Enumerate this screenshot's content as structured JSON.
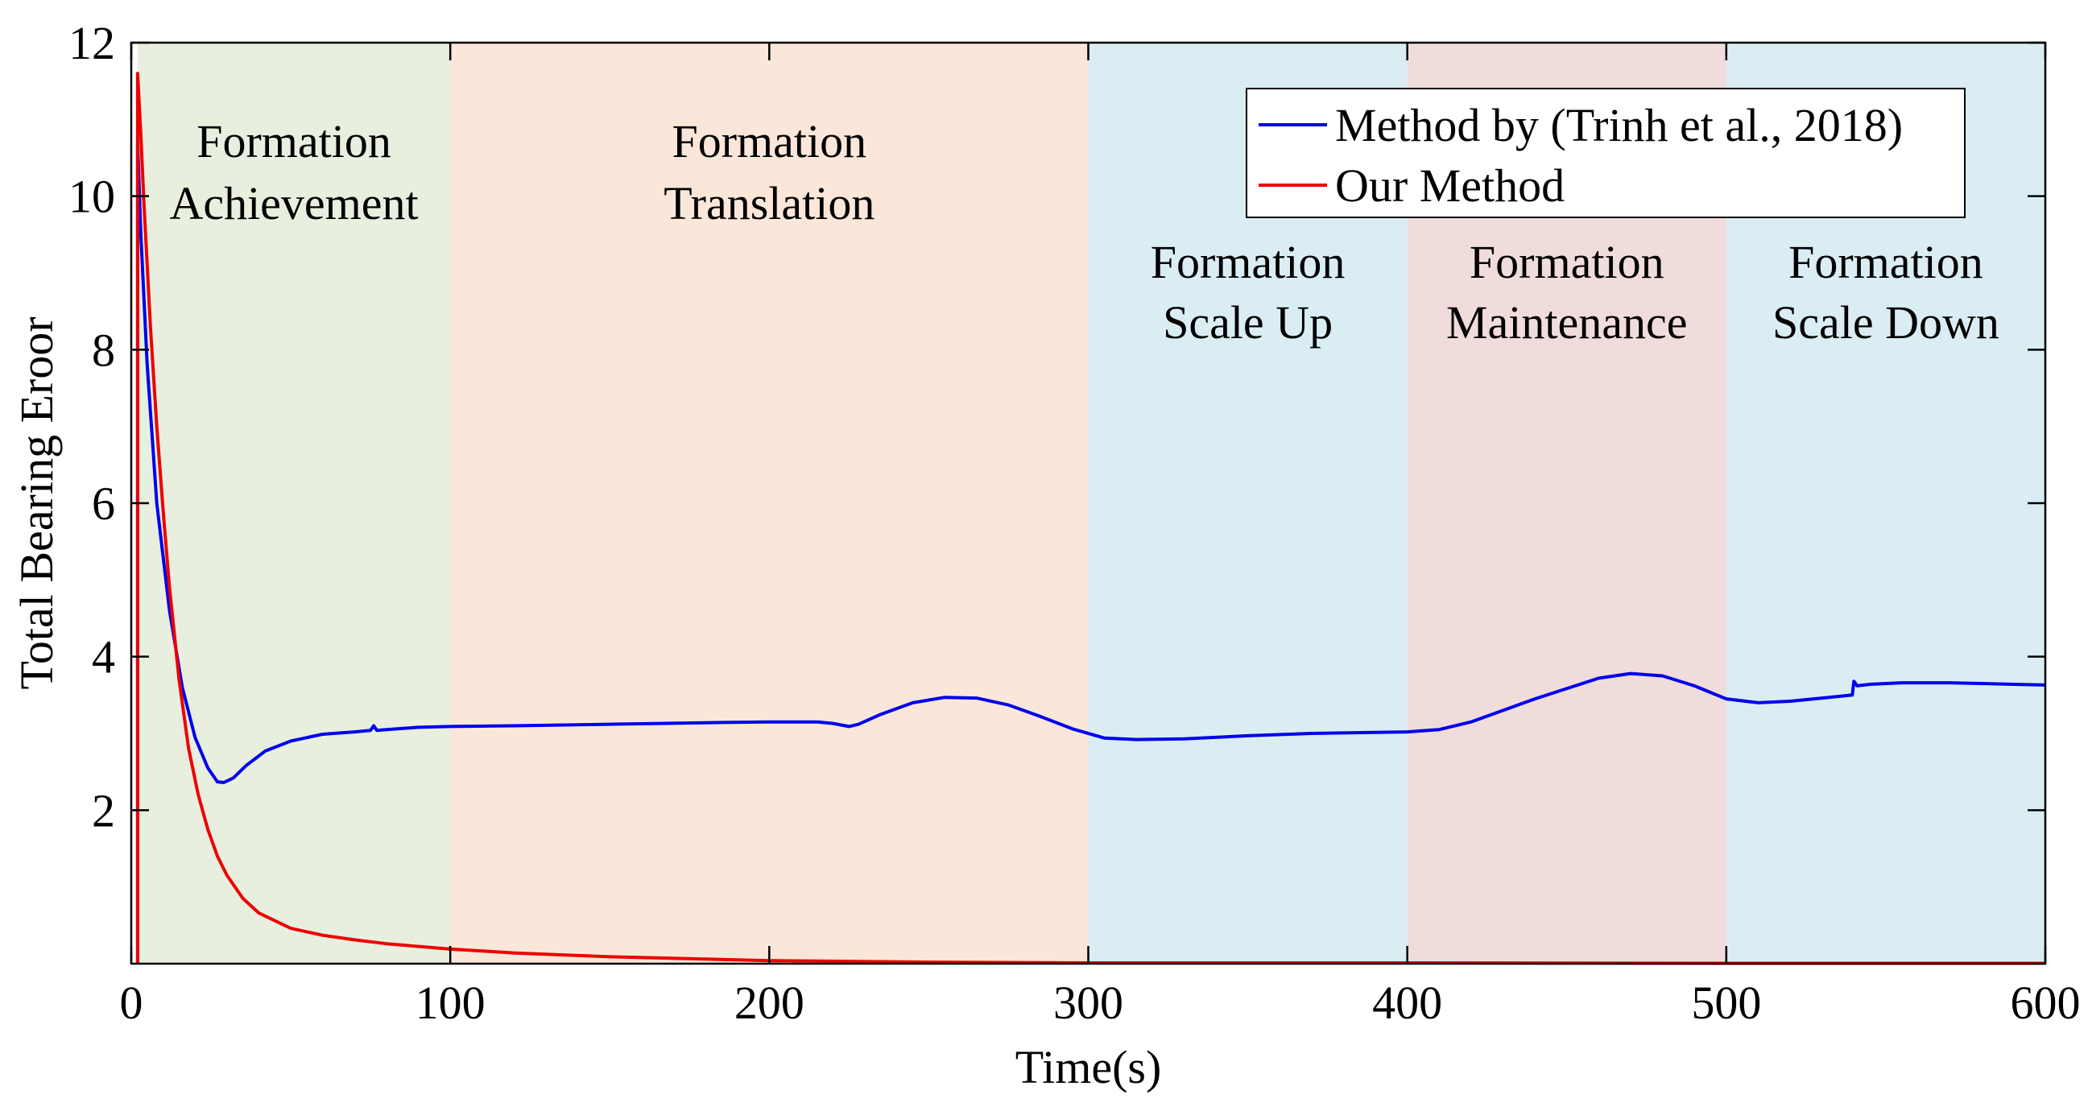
{
  "chart_data": {
    "type": "line",
    "title": "",
    "xlabel": "Time(s)",
    "ylabel": "Total Bearing Eroor",
    "xlim": [
      0,
      600
    ],
    "ylim": [
      0,
      12
    ],
    "xticks": [
      0,
      100,
      200,
      300,
      400,
      500,
      600
    ],
    "yticks": [
      2,
      4,
      6,
      8,
      10,
      12
    ],
    "grid": false,
    "legend_position": "top-right",
    "regions": [
      {
        "label_line1": "Formation",
        "label_line2": "Achievement",
        "x_start": 2,
        "x_end": 100,
        "color": "#e9efdf"
      },
      {
        "label_line1": "Formation",
        "label_line2": "Translation",
        "x_start": 100,
        "x_end": 300,
        "color": "#fbe7da"
      },
      {
        "label_line1": "Formation",
        "label_line2": "Scale Up",
        "x_start": 300,
        "x_end": 400,
        "color": "#daedf3"
      },
      {
        "label_line1": "Formation",
        "label_line2": "Maintenance",
        "x_start": 400,
        "x_end": 500,
        "color": "#f1dcdc"
      },
      {
        "label_line1": "Formation",
        "label_line2": "Scale Down",
        "x_start": 500,
        "x_end": 600,
        "color": "#daedf3"
      }
    ],
    "series": [
      {
        "name": "Method by (Trinh et al., 2018)",
        "color": "#0000ee",
        "x": [
          2,
          3,
          5,
          8,
          12,
          16,
          20,
          24,
          27,
          29,
          32,
          36,
          42,
          50,
          60,
          70,
          75,
          76,
          77,
          80,
          90,
          100,
          120,
          150,
          180,
          200,
          215,
          220,
          225,
          228,
          235,
          245,
          255,
          265,
          275,
          285,
          295,
          305,
          315,
          330,
          350,
          370,
          400,
          410,
          420,
          440,
          460,
          470,
          480,
          490,
          500,
          510,
          520,
          530,
          539.5,
          540,
          541,
          545,
          555,
          570,
          580,
          590,
          600
        ],
        "y": [
          10.7,
          9.5,
          7.8,
          6.0,
          4.6,
          3.6,
          2.95,
          2.55,
          2.37,
          2.36,
          2.42,
          2.58,
          2.77,
          2.9,
          2.99,
          3.02,
          3.04,
          3.1,
          3.04,
          3.05,
          3.08,
          3.09,
          3.1,
          3.12,
          3.14,
          3.15,
          3.15,
          3.13,
          3.09,
          3.12,
          3.25,
          3.4,
          3.47,
          3.46,
          3.37,
          3.22,
          3.06,
          2.94,
          2.92,
          2.93,
          2.97,
          3.0,
          3.02,
          3.05,
          3.15,
          3.45,
          3.72,
          3.78,
          3.75,
          3.62,
          3.45,
          3.4,
          3.42,
          3.46,
          3.5,
          3.68,
          3.62,
          3.64,
          3.66,
          3.66,
          3.65,
          3.64,
          3.63
        ]
      },
      {
        "name": "Our Method",
        "color": "#ee0000",
        "x": [
          2,
          3,
          4,
          6,
          8,
          10,
          12,
          15,
          18,
          21,
          24,
          27,
          30,
          35,
          40,
          50,
          60,
          70,
          80,
          100,
          120,
          150,
          200,
          250,
          300,
          400,
          500,
          600
        ],
        "y": [
          11.6,
          10.8,
          9.9,
          8.3,
          7.0,
          5.9,
          4.9,
          3.7,
          2.8,
          2.2,
          1.75,
          1.4,
          1.15,
          0.85,
          0.66,
          0.46,
          0.37,
          0.31,
          0.26,
          0.19,
          0.14,
          0.09,
          0.04,
          0.02,
          0.01,
          0.01,
          0.005,
          0.005
        ]
      }
    ]
  }
}
